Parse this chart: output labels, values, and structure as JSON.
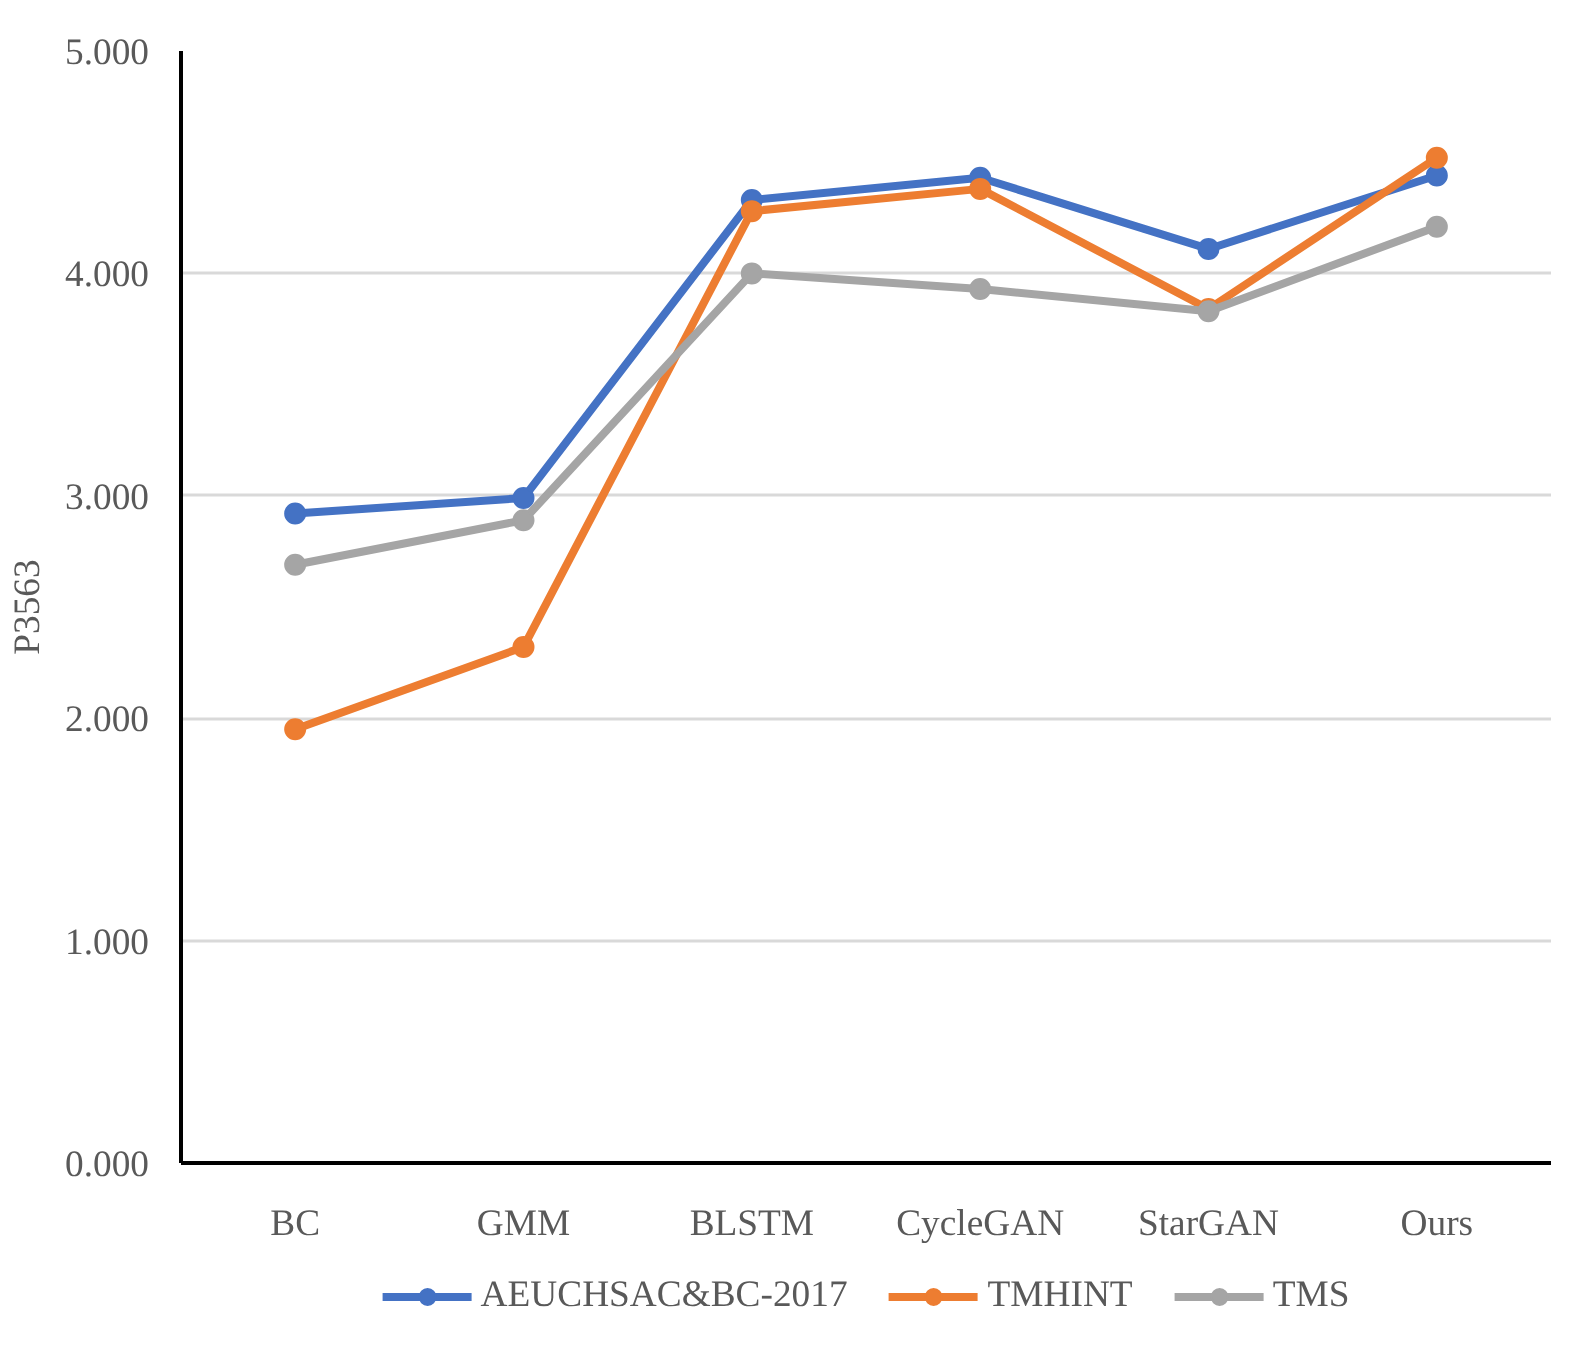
{
  "chart_data": {
    "type": "line",
    "ylabel": "P3563",
    "categories": [
      "BC",
      "GMM",
      "BLSTM",
      "CycleGAN",
      "StarGAN",
      "Ours"
    ],
    "series": [
      {
        "name": "AEUCHSAC&BC-2017",
        "color": "#4472c4",
        "values": [
          2.92,
          2.99,
          4.33,
          4.43,
          4.11,
          4.44
        ]
      },
      {
        "name": "TMHINT",
        "color": "#ed7d31",
        "values": [
          1.95,
          2.32,
          4.28,
          4.38,
          3.84,
          4.52
        ]
      },
      {
        "name": "TMS",
        "color": "#a5a5a5",
        "values": [
          2.69,
          2.89,
          4.0,
          3.93,
          3.83,
          4.21
        ]
      }
    ],
    "ylim": [
      0,
      5
    ],
    "yticks": [
      {
        "value": 0,
        "label": "0.000"
      },
      {
        "value": 1,
        "label": "1.000"
      },
      {
        "value": 2,
        "label": "2.000"
      },
      {
        "value": 3,
        "label": "3.000"
      },
      {
        "value": 4,
        "label": "4.000"
      },
      {
        "value": 5,
        "label": "5.000"
      }
    ],
    "grid": "y",
    "legend": "bottom",
    "marker": "circle",
    "line_style": "solid"
  }
}
